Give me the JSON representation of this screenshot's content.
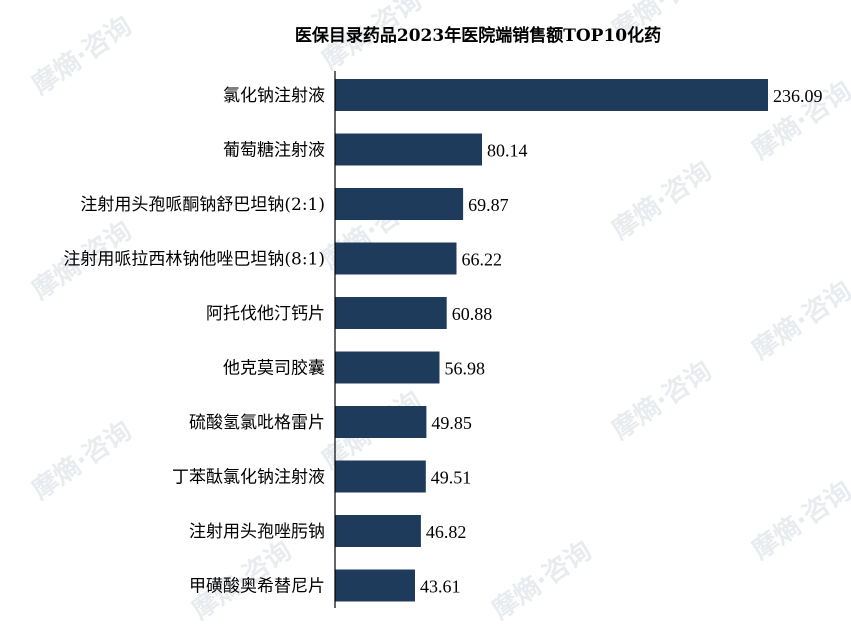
{
  "chart_data": {
    "type": "bar",
    "orientation": "horizontal",
    "title": "医保目录药品2023年医院端销售额TOP10化药",
    "categories": [
      "氯化钠注射液",
      "葡萄糖注射液",
      "注射用头孢哌酮钠舒巴坦钠(2:1)",
      "注射用哌拉西林钠他唑巴坦钠(8:1)",
      "阿托伐他汀钙片",
      "他克莫司胶囊",
      "硫酸氢氯吡格雷片",
      "丁苯酞氯化钠注射液",
      "注射用头孢唑肟钠",
      "甲磺酸奥希替尼片"
    ],
    "values": [
      236.09,
      80.14,
      69.87,
      66.22,
      60.88,
      56.98,
      49.85,
      49.51,
      46.82,
      43.61
    ],
    "value_labels": [
      "236.09",
      "80.14",
      "69.87",
      "66.22",
      "60.88",
      "56.98",
      "49.85",
      "49.51",
      "46.82",
      "43.61"
    ],
    "xlabel": "",
    "ylabel": "",
    "xlim": [
      0,
      236.09
    ],
    "grid": false,
    "legend": "none",
    "bar_color": "#1f3b5c"
  },
  "watermark": "摩熵·咨询"
}
